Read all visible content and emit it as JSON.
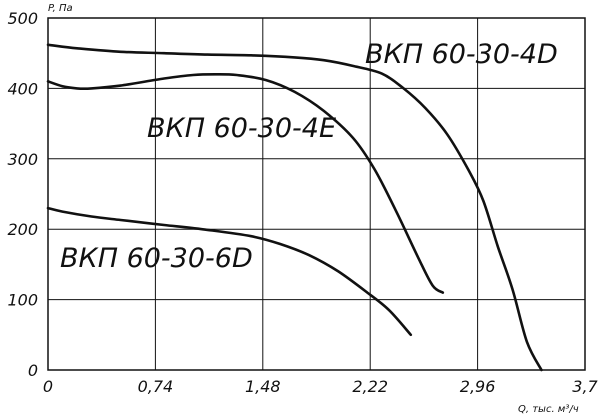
{
  "chart_data": {
    "type": "line",
    "title": "",
    "xlabel": "Q, тыс. м³/ч",
    "ylabel": "P, Па",
    "xlim": [
      0,
      3.7
    ],
    "ylim": [
      0,
      500
    ],
    "x_ticks": [
      "0",
      "0,74",
      "1,48",
      "2,22",
      "2,96",
      "3,7"
    ],
    "y_ticks": [
      "0",
      "100",
      "200",
      "300",
      "400",
      "500"
    ],
    "grid": true,
    "series": [
      {
        "name": "ВКП 60-30-4D",
        "x": [
          0,
          0.2,
          0.5,
          0.8,
          1.1,
          1.4,
          1.7,
          1.9,
          2.1,
          2.3,
          2.45,
          2.6,
          2.75,
          2.9,
          3.0,
          3.1,
          3.2,
          3.3,
          3.4
        ],
        "y": [
          462,
          457,
          452,
          450,
          448,
          447,
          444,
          440,
          432,
          421,
          400,
          372,
          335,
          283,
          240,
          175,
          115,
          40,
          0
        ]
      },
      {
        "name": "ВКП 60-30-4E",
        "x": [
          0,
          0.1,
          0.2,
          0.3,
          0.5,
          0.8,
          1.0,
          1.15,
          1.3,
          1.5,
          1.7,
          1.9,
          2.1,
          2.25,
          2.4,
          2.55,
          2.65,
          2.72
        ],
        "y": [
          410,
          403,
          400,
          400,
          404,
          414,
          419,
          420,
          419,
          412,
          395,
          368,
          330,
          285,
          225,
          160,
          120,
          110
        ]
      },
      {
        "name": "ВКП 60-30-6D",
        "x": [
          0,
          0.1,
          0.3,
          0.5,
          0.8,
          1.1,
          1.4,
          1.6,
          1.8,
          2.0,
          2.2,
          2.35,
          2.5
        ],
        "y": [
          230,
          225,
          218,
          213,
          206,
          199,
          190,
          179,
          163,
          140,
          110,
          85,
          50
        ]
      }
    ]
  }
}
